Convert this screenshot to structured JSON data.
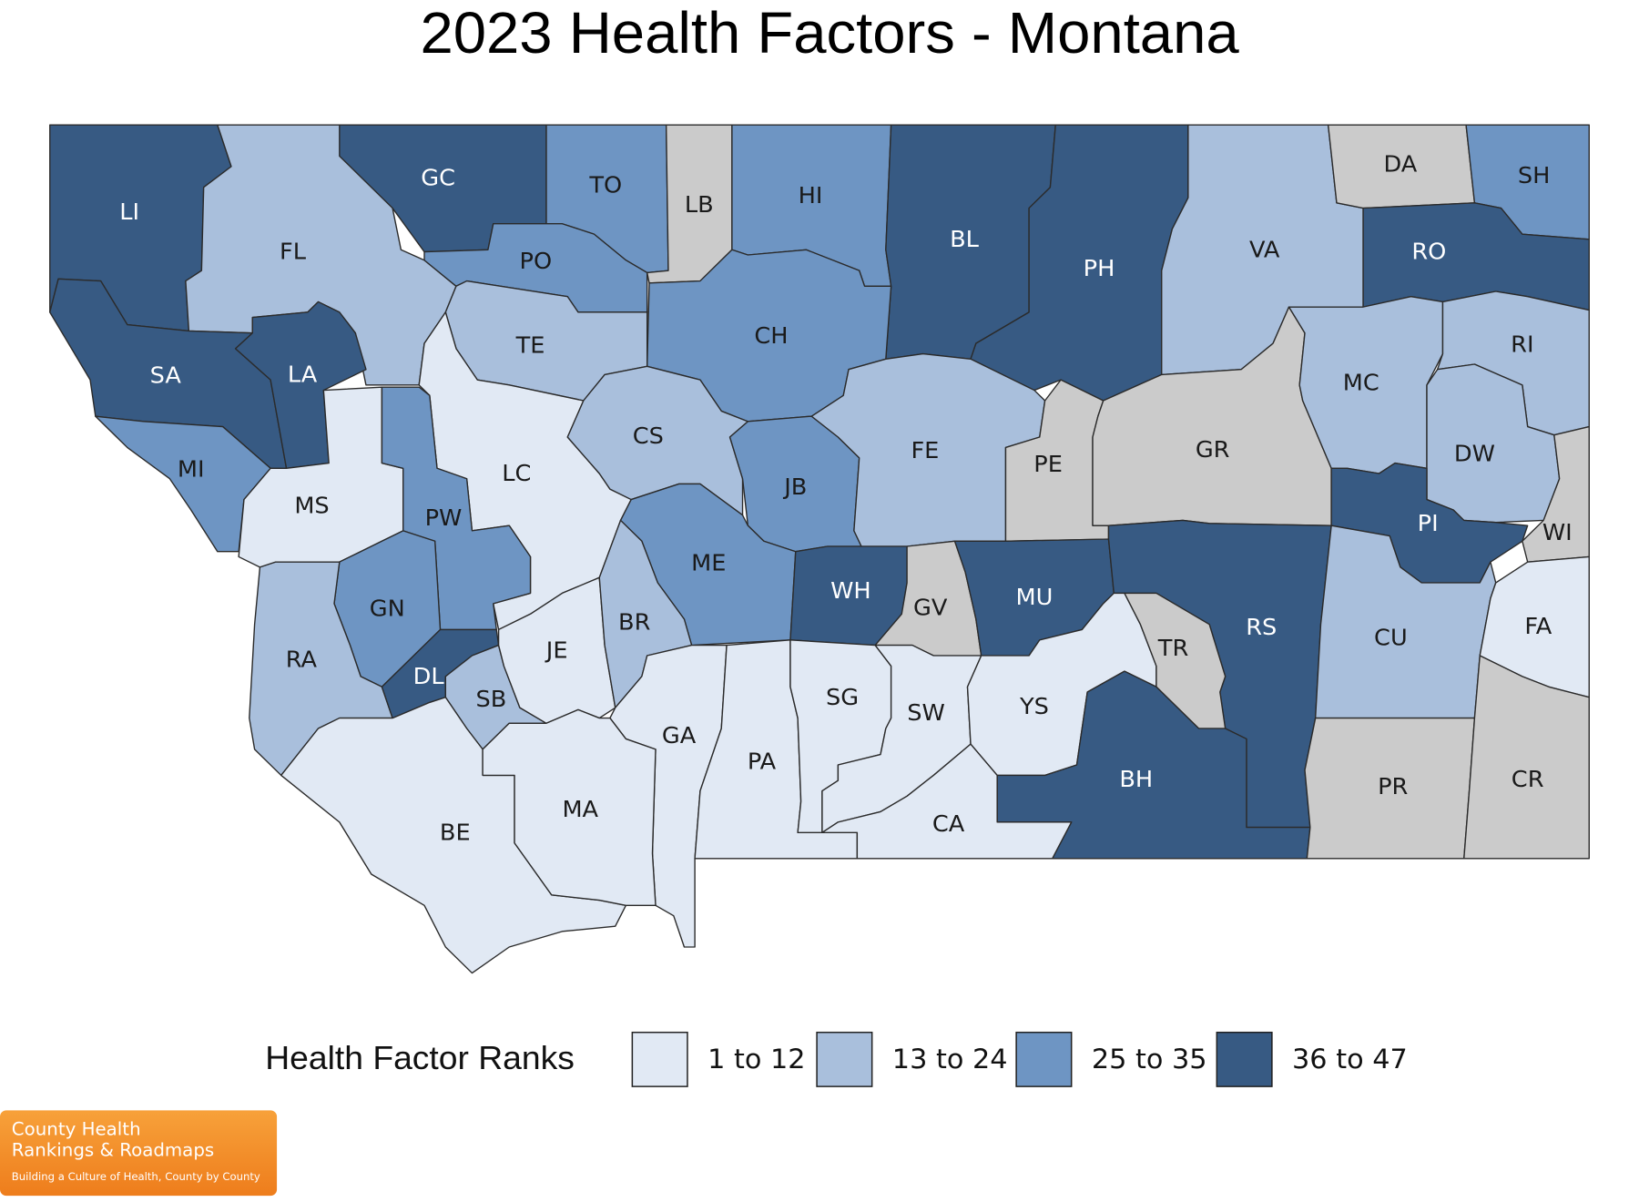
{
  "title": "2023 Health Factors - Montana",
  "legend": {
    "title": "Health Factor Ranks",
    "items": [
      {
        "label": "1 to 12",
        "color": "#e1e9f4"
      },
      {
        "label": "13 to 24",
        "color": "#a9bfdc"
      },
      {
        "label": "25 to 35",
        "color": "#6e95c3"
      },
      {
        "label": "36 to 47",
        "color": "#375a83"
      }
    ]
  },
  "unranked_color": "#cbcbcb",
  "counties": [
    {
      "label": "LI",
      "class": 3
    },
    {
      "label": "GC",
      "class": 3
    },
    {
      "label": "FL",
      "class": 1
    },
    {
      "label": "TO",
      "class": 2
    },
    {
      "label": "LB",
      "class": null
    },
    {
      "label": "HI",
      "class": 2
    },
    {
      "label": "BL",
      "class": 3
    },
    {
      "label": "PH",
      "class": 3
    },
    {
      "label": "VA",
      "class": 1
    },
    {
      "label": "DA",
      "class": null
    },
    {
      "label": "SH",
      "class": 2
    },
    {
      "label": "RO",
      "class": 3
    },
    {
      "label": "PO",
      "class": 2
    },
    {
      "label": "CH",
      "class": 2
    },
    {
      "label": "TE",
      "class": 1
    },
    {
      "label": "SA",
      "class": 3
    },
    {
      "label": "LA",
      "class": 3
    },
    {
      "label": "MI",
      "class": 2
    },
    {
      "label": "MS",
      "class": 0
    },
    {
      "label": "LC",
      "class": 0
    },
    {
      "label": "CS",
      "class": 1
    },
    {
      "label": "JB",
      "class": 2
    },
    {
      "label": "FE",
      "class": 1
    },
    {
      "label": "PE",
      "class": null
    },
    {
      "label": "GR",
      "class": null
    },
    {
      "label": "MC",
      "class": 1
    },
    {
      "label": "RI",
      "class": 1
    },
    {
      "label": "DW",
      "class": 1
    },
    {
      "label": "PI",
      "class": 3
    },
    {
      "label": "WI",
      "class": null
    },
    {
      "label": "PW",
      "class": 2
    },
    {
      "label": "GN",
      "class": 2
    },
    {
      "label": "ME",
      "class": 2
    },
    {
      "label": "WH",
      "class": 3
    },
    {
      "label": "GV",
      "class": null
    },
    {
      "label": "MU",
      "class": 3
    },
    {
      "label": "RS",
      "class": 3
    },
    {
      "label": "CU",
      "class": 1
    },
    {
      "label": "FA",
      "class": 0
    },
    {
      "label": "RA",
      "class": 1
    },
    {
      "label": "DL",
      "class": 3
    },
    {
      "label": "SB",
      "class": 1
    },
    {
      "label": "JE",
      "class": 0
    },
    {
      "label": "BR",
      "class": 1
    },
    {
      "label": "GA",
      "class": 0
    },
    {
      "label": "PA",
      "class": 0
    },
    {
      "label": "SG",
      "class": 0
    },
    {
      "label": "SW",
      "class": 0
    },
    {
      "label": "YS",
      "class": 0
    },
    {
      "label": "TR",
      "class": null
    },
    {
      "label": "BH",
      "class": 3
    },
    {
      "label": "PR",
      "class": null
    },
    {
      "label": "CR",
      "class": null
    },
    {
      "label": "BE",
      "class": 0
    },
    {
      "label": "MA",
      "class": 0
    },
    {
      "label": "CA",
      "class": 0
    }
  ],
  "logo": {
    "line1": "County Health",
    "line2": "Rankings & Roadmaps",
    "tagline": "Building a Culture of Health, County by County"
  }
}
